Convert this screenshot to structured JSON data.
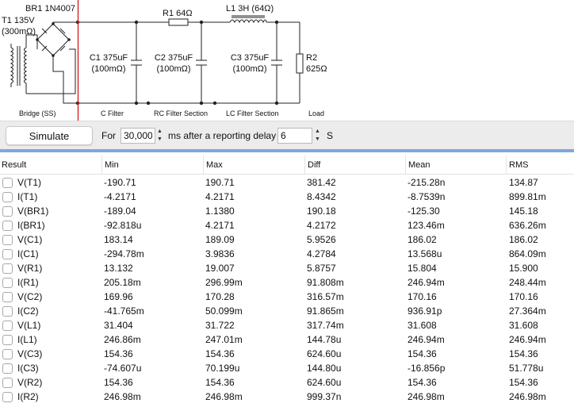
{
  "schematic": {
    "transformer": {
      "name": "T1 135V",
      "resistance": "(300mΩ)"
    },
    "bridge": {
      "name": "BR1 1N4007"
    },
    "resistor1": {
      "name": "R1 64Ω"
    },
    "inductor": {
      "name": "L1 3H (64Ω)"
    },
    "cap1": {
      "name": "C1 375uF",
      "esr": "(100mΩ)"
    },
    "cap2": {
      "name": "C2 375uF",
      "esr": "(100mΩ)"
    },
    "cap3": {
      "name": "C3 375uF",
      "esr": "(100mΩ)"
    },
    "load": {
      "name": "R2",
      "value": "625Ω"
    },
    "sections": [
      "Bridge (SS)",
      "C Filter",
      "RC Filter Section",
      "LC Filter Section",
      "Load"
    ]
  },
  "toolbar": {
    "simulate_label": "Simulate",
    "for_label": "For",
    "duration_value": "30,000",
    "mid_label": "ms after a reporting delay",
    "delay_value": "6",
    "unit_label": "S"
  },
  "table": {
    "columns": [
      "Result",
      "Min",
      "Max",
      "Diff",
      "Mean",
      "RMS"
    ],
    "rows": [
      [
        "V(T1)",
        "-190.71",
        "190.71",
        "381.42",
        "-215.28n",
        "134.87"
      ],
      [
        "I(T1)",
        "-4.2171",
        "4.2171",
        "8.4342",
        "-8.7539n",
        "899.81m"
      ],
      [
        "V(BR1)",
        "-189.04",
        "1.1380",
        "190.18",
        "-125.30",
        "145.18"
      ],
      [
        "I(BR1)",
        "-92.818u",
        "4.2171",
        "4.2172",
        "123.46m",
        "636.26m"
      ],
      [
        "V(C1)",
        "183.14",
        "189.09",
        "5.9526",
        "186.02",
        "186.02"
      ],
      [
        "I(C1)",
        "-294.78m",
        "3.9836",
        "4.2784",
        "13.568u",
        "864.09m"
      ],
      [
        "V(R1)",
        "13.132",
        "19.007",
        "5.8757",
        "15.804",
        "15.900"
      ],
      [
        "I(R1)",
        "205.18m",
        "296.99m",
        "91.808m",
        "246.94m",
        "248.44m"
      ],
      [
        "V(C2)",
        "169.96",
        "170.28",
        "316.57m",
        "170.16",
        "170.16"
      ],
      [
        "I(C2)",
        "-41.765m",
        "50.099m",
        "91.865m",
        "936.91p",
        "27.364m"
      ],
      [
        "V(L1)",
        "31.404",
        "31.722",
        "317.74m",
        "31.608",
        "31.608"
      ],
      [
        "I(L1)",
        "246.86m",
        "247.01m",
        "144.78u",
        "246.94m",
        "246.94m"
      ],
      [
        "V(C3)",
        "154.36",
        "154.36",
        "624.60u",
        "154.36",
        "154.36"
      ],
      [
        "I(C3)",
        "-74.607u",
        "70.199u",
        "144.80u",
        "-16.856p",
        "51.778u"
      ],
      [
        "V(R2)",
        "154.36",
        "154.36",
        "624.60u",
        "154.36",
        "154.36"
      ],
      [
        "I(R2)",
        "246.98m",
        "246.98m",
        "999.37n",
        "246.98m",
        "246.98m"
      ]
    ]
  }
}
